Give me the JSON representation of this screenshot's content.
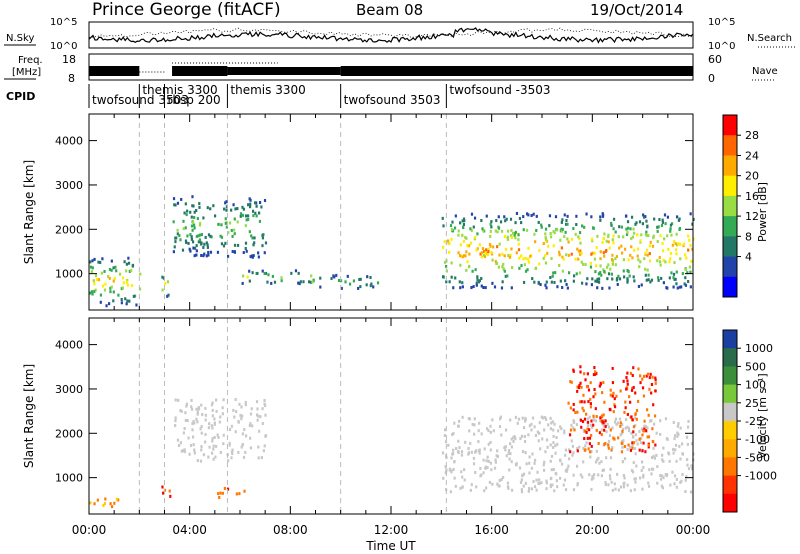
{
  "header": {
    "station": "Prince George (fitACF)",
    "beam": "Beam 08",
    "date": "19/Oct/2014"
  },
  "top_panels": {
    "nsky_label": "N.Sky",
    "nsky_ticks": [
      "10^5",
      "10^0"
    ],
    "nsearch_label": "N.Search",
    "nsearch_ticks": [
      "10^5",
      "10^0"
    ],
    "freq_label": "Freq.",
    "freq_unit": "[MHz]",
    "freq_ticks": [
      "18",
      "8"
    ],
    "nave_label": "Nave",
    "nave_ticks": [
      "60",
      "0"
    ],
    "cpid_label": "CPID"
  },
  "cpid_programs": [
    {
      "name": "twofsound 3503",
      "start_h": 0.0
    },
    {
      "name": "themis 3300",
      "start_h": 2.0
    },
    {
      "name": "rbsp 200",
      "start_h": 3.0
    },
    {
      "name": "themis 3300",
      "start_h": 5.5
    },
    {
      "name": "twofsound 3503",
      "start_h": 10.0
    },
    {
      "name": "twofsound -3503",
      "start_h": 14.2
    }
  ],
  "axes": {
    "ylabel": "Slant Range [km]",
    "xlabel": "Time UT",
    "y_ticks": [
      "4000",
      "3000",
      "2000",
      "1000"
    ],
    "x_ticks": [
      "00:00",
      "04:00",
      "08:00",
      "12:00",
      "16:00",
      "20:00",
      "00:00"
    ]
  },
  "power_colorbar": {
    "label": "Power [dB]",
    "ticks": [
      "28",
      "24",
      "20",
      "16",
      "12",
      "8",
      "4"
    ],
    "colors": [
      "#ff0000",
      "#ff6600",
      "#ffaa00",
      "#ffee00",
      "#99dd44",
      "#33aa55",
      "#227766",
      "#2244aa",
      "#0000ff"
    ]
  },
  "velocity_colorbar": {
    "label": "Velocity [m s⁻¹]",
    "ticks": [
      "1000",
      "500",
      "100",
      "25",
      "-25",
      "-100",
      "-500",
      "-1000"
    ],
    "colors": [
      "#1a3fa0",
      "#2a6b4a",
      "#3c8f3a",
      "#77c93a",
      "#c8c8c8",
      "#ffcc00",
      "#ffaa00",
      "#ff7700",
      "#ff3300",
      "#ff0000"
    ]
  },
  "chart_data": {
    "type": "heatmap",
    "title": "Prince George (fitACF)  Beam 08  19/Oct/2014",
    "xlabel": "Time UT",
    "ylabel": "Slant Range [km]",
    "xlim": [
      0,
      24
    ],
    "ylim": [
      180,
      4600
    ],
    "grid": false,
    "dashed_vlines_h": [
      2.0,
      3.0,
      5.5,
      10.0,
      14.2
    ],
    "power_regions": [
      {
        "t": [
          0.0,
          2.0
        ],
        "r": [
          300,
          1400
        ],
        "peak_db": 24
      },
      {
        "t": [
          2.8,
          3.2
        ],
        "r": [
          500,
          1000
        ],
        "peak_db": 28
      },
      {
        "t": [
          3.3,
          7.0
        ],
        "r": [
          1400,
          2800
        ],
        "peak_db": 16
      },
      {
        "t": [
          6.0,
          8.8
        ],
        "r": [
          800,
          1100
        ],
        "peak_db": 20
      },
      {
        "t": [
          8.8,
          11.5
        ],
        "r": [
          700,
          1000
        ],
        "peak_db": 16
      },
      {
        "t": [
          14.0,
          24.0
        ],
        "r": [
          700,
          2400
        ],
        "peak_db": 28
      }
    ],
    "velocity_regions": [
      {
        "t": [
          0.0,
          1.2
        ],
        "r": [
          300,
          600
        ],
        "velocity": -100
      },
      {
        "t": [
          2.8,
          3.2
        ],
        "r": [
          500,
          900
        ],
        "velocity": -500
      },
      {
        "t": [
          3.3,
          7.0
        ],
        "r": [
          1400,
          2800
        ],
        "velocity": 0
      },
      {
        "t": [
          5.0,
          6.2
        ],
        "r": [
          550,
          800
        ],
        "velocity": -500
      },
      {
        "t": [
          14.0,
          24.0
        ],
        "r": [
          700,
          2400
        ],
        "velocity": 0
      },
      {
        "t": [
          19.0,
          22.5
        ],
        "r": [
          1600,
          3600
        ],
        "velocity": -500
      }
    ]
  }
}
